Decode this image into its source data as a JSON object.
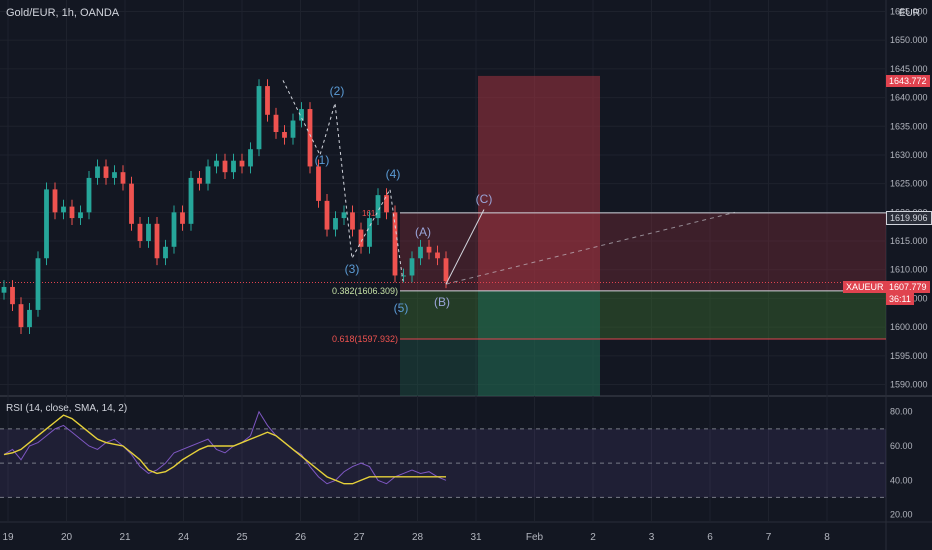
{
  "header": {
    "title": "Gold/EUR, 1h, OANDA",
    "currency": "EUR"
  },
  "rsi": {
    "title": "RSI (14, close, SMA, 14, 2)"
  },
  "price_tags": {
    "top": "1643.772",
    "mid": "1619.906",
    "symbol": "XAUEUR",
    "current": "1607.779",
    "countdown": "36:11"
  },
  "colors": {
    "background": "#131722",
    "up": "#26a69a",
    "down": "#ef5350",
    "wave": "#5b9bd5",
    "rsi_line": "#7e57c2",
    "rsi_sma": "#e6d13a",
    "stop_zone": "#8b2e3a",
    "target_zone": "#1f5e4a"
  },
  "chart_data": {
    "type": "candlestick",
    "price_axis": {
      "ticks": [
        "1590.000",
        "1595.000",
        "1600.000",
        "1605.000",
        "1610.000",
        "1615.000",
        "1620.000",
        "1625.000",
        "1630.000",
        "1635.000",
        "1640.000",
        "1645.000",
        "1650.000",
        "1655.000"
      ],
      "range": [
        1588,
        1657
      ]
    },
    "time_axis": {
      "ticks": [
        "19",
        "20",
        "21",
        "24",
        "25",
        "26",
        "27",
        "28",
        "31",
        "Feb",
        "2",
        "3",
        "6",
        "7",
        "8"
      ]
    },
    "close_path": [
      1607,
      1604,
      1600,
      1603,
      1612,
      1624,
      1620,
      1621,
      1619,
      1620,
      1626,
      1628,
      1626,
      1627,
      1625,
      1618,
      1615,
      1618,
      1612,
      1614,
      1620,
      1618,
      1626,
      1625,
      1628,
      1629,
      1627,
      1629,
      1628,
      1631,
      1642,
      1637,
      1634,
      1633,
      1636,
      1638,
      1628,
      1622,
      1617,
      1619,
      1620,
      1617,
      1614,
      1619,
      1623,
      1620,
      1609,
      1609,
      1612,
      1614,
      1613,
      1612,
      1608
    ],
    "fib_levels": [
      {
        "label": "0.382(1606.309)",
        "value": 1606.309
      },
      {
        "label": "0.618(1597.932)",
        "value": 1597.932
      }
    ],
    "fib_extra_label": "1619",
    "zones": {
      "stop": {
        "from": 1619.906,
        "to": 1643.772
      },
      "target": {
        "from": 1588,
        "to": 1606.309
      }
    },
    "wave_labels": [
      "(1)",
      "(2)",
      "(3)",
      "(4)",
      "(5)",
      "(A)",
      "(B)",
      "(C)"
    ],
    "rsi": {
      "axis_ticks": [
        "80.00",
        "60.00",
        "40.00",
        "20.00"
      ],
      "range": [
        18,
        88
      ],
      "bands": [
        30,
        50,
        70
      ],
      "values": [
        55,
        58,
        52,
        60,
        62,
        66,
        70,
        72,
        68,
        64,
        60,
        58,
        62,
        64,
        60,
        55,
        48,
        44,
        46,
        50,
        56,
        58,
        60,
        62,
        64,
        58,
        56,
        60,
        62,
        66,
        80,
        72,
        66,
        62,
        58,
        55,
        48,
        42,
        38,
        40,
        45,
        48,
        50,
        48,
        40,
        38,
        42,
        44,
        46,
        44,
        45,
        42,
        40
      ],
      "sma": [
        55,
        56,
        58,
        62,
        66,
        70,
        74,
        78,
        76,
        72,
        68,
        64,
        62,
        61,
        60,
        56,
        52,
        46,
        44,
        45,
        48,
        52,
        55,
        58,
        60,
        60,
        60,
        60,
        62,
        64,
        66,
        68,
        66,
        62,
        58,
        54,
        50,
        46,
        42,
        40,
        38,
        38,
        40,
        42,
        42,
        42,
        42,
        42,
        42,
        42,
        42,
        42,
        42
      ]
    }
  }
}
